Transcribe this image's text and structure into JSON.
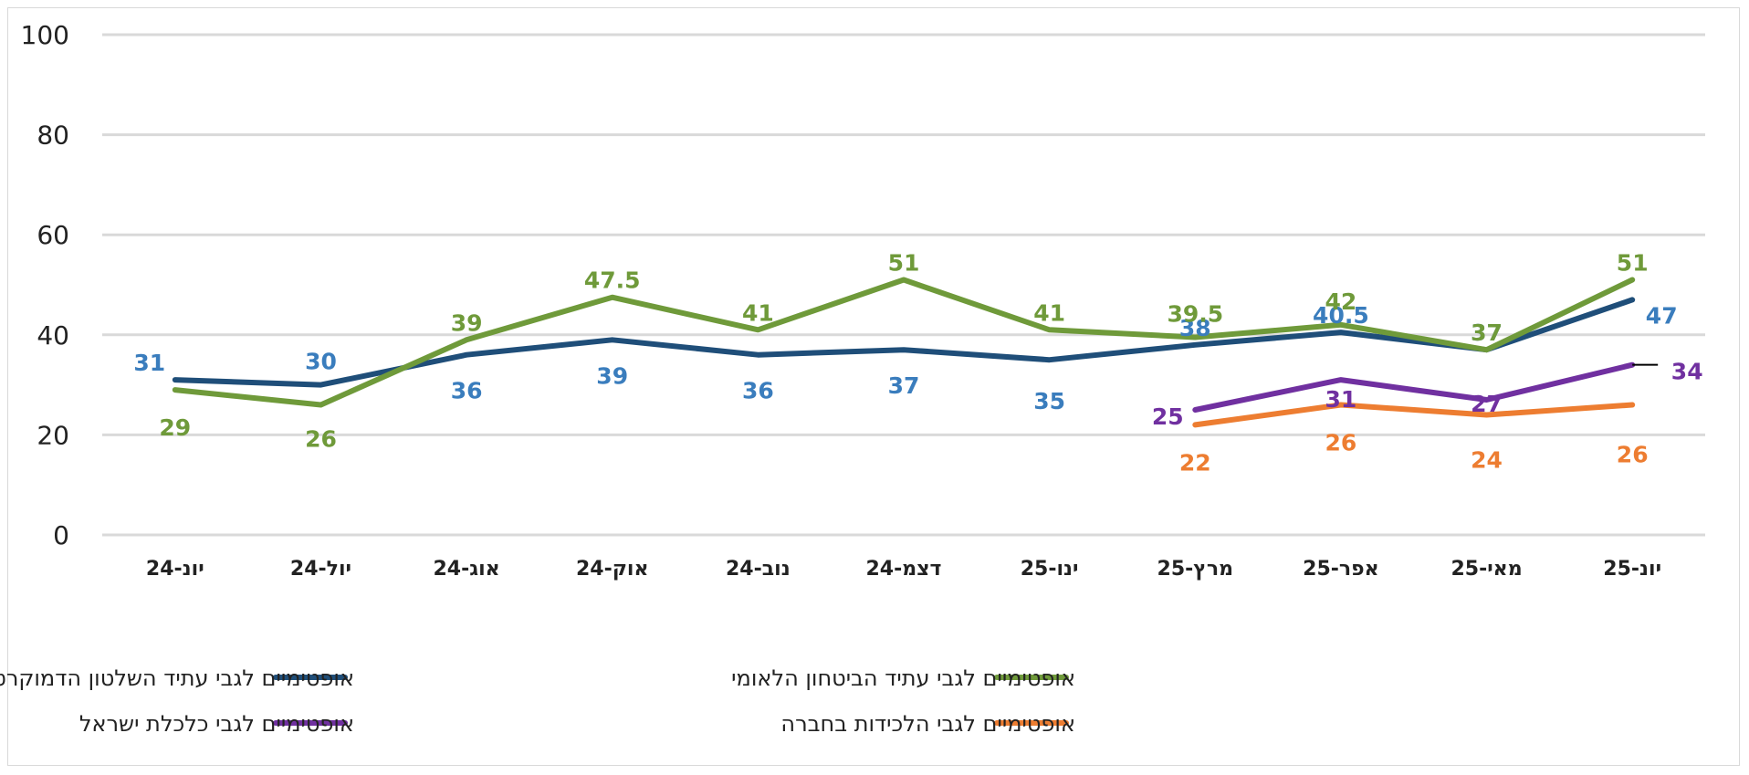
{
  "chart_data": {
    "type": "line",
    "title": "",
    "xlabel": "",
    "ylabel": "",
    "ylim": [
      0,
      100
    ],
    "yticks": [
      "0",
      "20",
      "40",
      "60",
      "80",
      "100"
    ],
    "grid": true,
    "legend_position": "bottom",
    "categories": [
      "יונ-24",
      "יול-24",
      "אוג-24",
      "אוק-24",
      "נוב-24",
      "דצמ-24",
      "ינו-25",
      "מרץ-25",
      "אפר-25",
      "מאי-25",
      "יונ-25"
    ],
    "series": [
      {
        "name": "אופטימיים לגבי עתיד השלטון הדמוקרטי",
        "color": "#1f4e79",
        "label_color": "#3a7dbd",
        "values": [
          31,
          30,
          36,
          39,
          36,
          37,
          35,
          38,
          40.5,
          37,
          47
        ],
        "labels": [
          "31",
          "30",
          "36",
          "39",
          "36",
          "37",
          "35",
          "38",
          "40.5",
          "37",
          "47"
        ]
      },
      {
        "name": "אופטימיים לגבי עתיד הביטחון הלאומי",
        "color": "#6f9a3a",
        "label_color": "#6f9a3a",
        "values": [
          29,
          26,
          39,
          47.5,
          41,
          51,
          41,
          39.5,
          42,
          37,
          51
        ],
        "labels": [
          "29",
          "26",
          "39",
          "47.5",
          "41",
          "51",
          "41",
          "39.5",
          "42",
          "37",
          "51"
        ]
      },
      {
        "name": "אופטימיים לגבי כלכלת ישראל",
        "color": "#7030a0",
        "label_color": "#7030a0",
        "values": [
          null,
          null,
          null,
          null,
          null,
          null,
          null,
          25,
          31,
          27,
          34
        ],
        "labels": [
          "",
          "",
          "",
          "",
          "",
          "",
          "",
          "25",
          "31",
          "27",
          "34"
        ]
      },
      {
        "name": "אופטימיים לגבי הלכידות בחברה",
        "color": "#ed7d31",
        "label_color": "#ed7d31",
        "values": [
          null,
          null,
          null,
          null,
          null,
          null,
          null,
          22,
          26,
          24,
          26
        ],
        "labels": [
          "",
          "",
          "",
          "",
          "",
          "",
          "",
          "22",
          "26",
          "24",
          "26"
        ]
      }
    ]
  }
}
